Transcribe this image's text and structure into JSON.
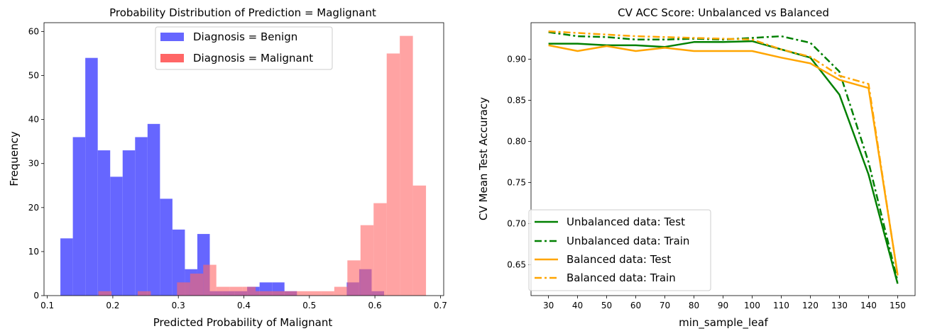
{
  "chart_data": [
    {
      "type": "bar",
      "title": "Probability Distribution of Prediction = Maglignant",
      "xlabel": "Predicted Probability of Malignant",
      "ylabel": "Frequency",
      "xlim": [
        0.095,
        0.705
      ],
      "ylim": [
        0,
        62
      ],
      "xticks": [
        0.1,
        0.2,
        0.3,
        0.4,
        0.5,
        0.6,
        0.7
      ],
      "xtick_labels": [
        "0.1",
        "0.2",
        "0.3",
        "0.4",
        "0.5",
        "0.6",
        "0.7"
      ],
      "yticks": [
        0,
        10,
        20,
        30,
        40,
        50,
        60
      ],
      "ytick_labels": [
        "0",
        "10",
        "20",
        "30",
        "40",
        "50",
        "60"
      ],
      "legend_position": "top-center",
      "series": [
        {
          "name": "Diagnosis = Benign",
          "color": "#6666ff",
          "bins": [
            [
              0.12,
              0.139,
              13
            ],
            [
              0.139,
              0.158,
              36
            ],
            [
              0.158,
              0.177,
              54
            ],
            [
              0.177,
              0.196,
              33
            ],
            [
              0.196,
              0.215,
              27
            ],
            [
              0.215,
              0.234,
              33
            ],
            [
              0.234,
              0.253,
              36
            ],
            [
              0.253,
              0.272,
              39
            ],
            [
              0.272,
              0.291,
              22
            ],
            [
              0.291,
              0.31,
              15
            ],
            [
              0.31,
              0.329,
              6
            ],
            [
              0.329,
              0.348,
              14
            ],
            [
              0.348,
              0.367,
              1
            ],
            [
              0.367,
              0.386,
              1
            ],
            [
              0.386,
              0.405,
              1
            ],
            [
              0.405,
              0.424,
              2
            ],
            [
              0.424,
              0.443,
              3
            ],
            [
              0.443,
              0.462,
              3
            ],
            [
              0.462,
              0.481,
              1
            ],
            [
              0.557,
              0.576,
              3
            ],
            [
              0.576,
              0.595,
              6
            ],
            [
              0.595,
              0.614,
              1
            ]
          ]
        },
        {
          "name": "Diagnosis = Malignant",
          "color": "#ff6666",
          "bins": [
            [
              0.178,
              0.198,
              1
            ],
            [
              0.238,
              0.258,
              1
            ],
            [
              0.298,
              0.318,
              3
            ],
            [
              0.318,
              0.338,
              5
            ],
            [
              0.338,
              0.358,
              7
            ],
            [
              0.358,
              0.378,
              2
            ],
            [
              0.378,
              0.398,
              2
            ],
            [
              0.398,
              0.418,
              2
            ],
            [
              0.418,
              0.438,
              1
            ],
            [
              0.438,
              0.458,
              1
            ],
            [
              0.458,
              0.478,
              1
            ],
            [
              0.478,
              0.498,
              1
            ],
            [
              0.498,
              0.518,
              1
            ],
            [
              0.518,
              0.538,
              1
            ],
            [
              0.538,
              0.558,
              2
            ],
            [
              0.558,
              0.578,
              8
            ],
            [
              0.578,
              0.598,
              16
            ],
            [
              0.598,
              0.618,
              21
            ],
            [
              0.618,
              0.638,
              55
            ],
            [
              0.638,
              0.658,
              59
            ],
            [
              0.658,
              0.678,
              25
            ]
          ]
        }
      ],
      "overlap_color": "#cc2d66"
    },
    {
      "type": "line",
      "title": "CV ACC Score: Unbalanced vs Balanced",
      "xlabel": "min_sample_leaf",
      "ylabel": "CV Mean Test Accuracy",
      "xlim": [
        24,
        156
      ],
      "ylim": [
        0.6125,
        0.9445
      ],
      "xticks": [
        30,
        40,
        50,
        60,
        70,
        80,
        90,
        100,
        110,
        120,
        130,
        140,
        150
      ],
      "xtick_labels": [
        "30",
        "40",
        "50",
        "60",
        "70",
        "80",
        "90",
        "100",
        "110",
        "120",
        "130",
        "140",
        "150"
      ],
      "yticks": [
        0.65,
        0.7,
        0.75,
        0.8,
        0.85,
        0.9
      ],
      "ytick_labels": [
        "0.65",
        "0.70",
        "0.75",
        "0.80",
        "0.85",
        "0.90"
      ],
      "legend_position": "lower-left",
      "x": [
        30,
        40,
        50,
        60,
        70,
        80,
        90,
        100,
        110,
        120,
        130,
        140,
        150
      ],
      "series": [
        {
          "name": "Unbalanced data: Test",
          "color": "#008000",
          "style": "solid",
          "values": [
            0.919,
            0.919,
            0.917,
            0.917,
            0.915,
            0.921,
            0.921,
            0.922,
            0.912,
            0.902,
            0.857,
            0.76,
            0.627
          ]
        },
        {
          "name": "Unbalanced data: Train",
          "color": "#008000",
          "style": "dashdot",
          "values": [
            0.933,
            0.928,
            0.927,
            0.924,
            0.924,
            0.925,
            0.924,
            0.926,
            0.928,
            0.92,
            0.885,
            0.775,
            0.63
          ]
        },
        {
          "name": "Balanced data: Test",
          "color": "#ffa500",
          "style": "solid",
          "values": [
            0.917,
            0.91,
            0.916,
            0.91,
            0.914,
            0.91,
            0.91,
            0.91,
            0.902,
            0.895,
            0.875,
            0.865,
            0.638
          ]
        },
        {
          "name": "Balanced data: Train",
          "color": "#ffa500",
          "style": "dashdot",
          "values": [
            0.934,
            0.932,
            0.93,
            0.928,
            0.927,
            0.926,
            0.925,
            0.924,
            0.912,
            0.903,
            0.88,
            0.87,
            0.637
          ]
        }
      ]
    }
  ]
}
